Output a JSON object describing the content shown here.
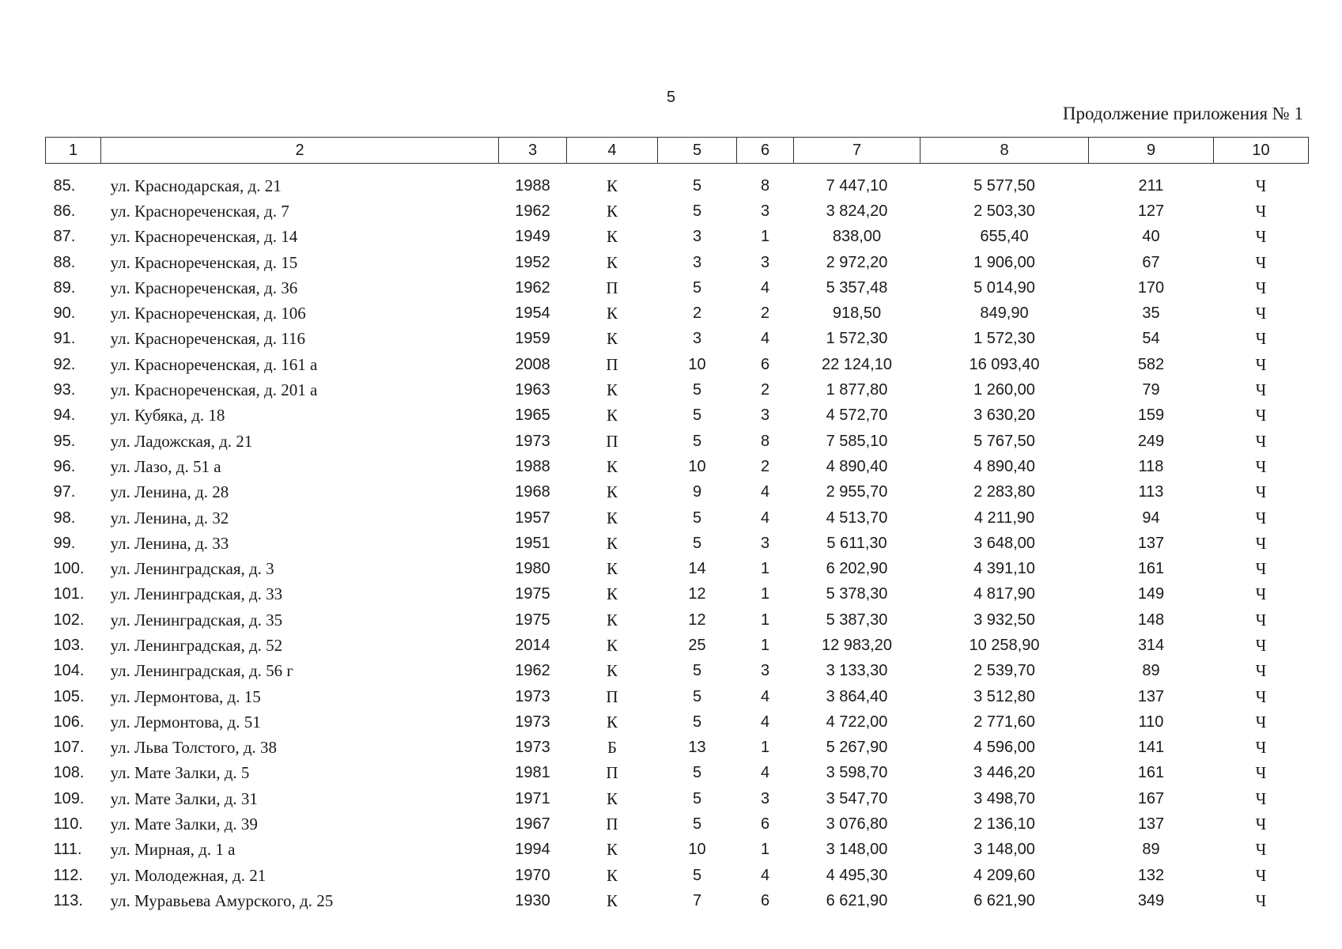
{
  "page": {
    "number": "5",
    "title": "Продолжение приложения № 1"
  },
  "table": {
    "headers": [
      "1",
      "2",
      "3",
      "4",
      "5",
      "6",
      "7",
      "8",
      "9",
      "10"
    ],
    "rows": [
      [
        "85.",
        "ул. Краснодарская, д. 21",
        "1988",
        "К",
        "5",
        "8",
        "7 447,10",
        "5 577,50",
        "211",
        "Ч"
      ],
      [
        "86.",
        "ул. Краснореченская, д. 7",
        "1962",
        "К",
        "5",
        "3",
        "3 824,20",
        "2 503,30",
        "127",
        "Ч"
      ],
      [
        "87.",
        "ул. Краснореченская, д. 14",
        "1949",
        "К",
        "3",
        "1",
        "838,00",
        "655,40",
        "40",
        "Ч"
      ],
      [
        "88.",
        "ул. Краснореченская, д. 15",
        "1952",
        "К",
        "3",
        "3",
        "2 972,20",
        "1 906,00",
        "67",
        "Ч"
      ],
      [
        "89.",
        "ул. Краснореченская, д. 36",
        "1962",
        "П",
        "5",
        "4",
        "5 357,48",
        "5 014,90",
        "170",
        "Ч"
      ],
      [
        "90.",
        "ул. Краснореченская, д. 106",
        "1954",
        "К",
        "2",
        "2",
        "918,50",
        "849,90",
        "35",
        "Ч"
      ],
      [
        "91.",
        "ул. Краснореченская, д. 116",
        "1959",
        "К",
        "3",
        "4",
        "1 572,30",
        "1 572,30",
        "54",
        "Ч"
      ],
      [
        "92.",
        "ул. Краснореченская, д. 161 а",
        "2008",
        "П",
        "10",
        "6",
        "22 124,10",
        "16 093,40",
        "582",
        "Ч"
      ],
      [
        "93.",
        "ул. Краснореченская, д. 201 а",
        "1963",
        "К",
        "5",
        "2",
        "1 877,80",
        "1 260,00",
        "79",
        "Ч"
      ],
      [
        "94.",
        "ул. Кубяка, д. 18",
        "1965",
        "К",
        "5",
        "3",
        "4 572,70",
        "3 630,20",
        "159",
        "Ч"
      ],
      [
        "95.",
        "ул. Ладожская, д. 21",
        "1973",
        "П",
        "5",
        "8",
        "7 585,10",
        "5 767,50",
        "249",
        "Ч"
      ],
      [
        "96.",
        "ул. Лазо, д. 51 а",
        "1988",
        "К",
        "10",
        "2",
        "4 890,40",
        "4 890,40",
        "118",
        "Ч"
      ],
      [
        "97.",
        "ул. Ленина, д. 28",
        "1968",
        "К",
        "9",
        "4",
        "2 955,70",
        "2 283,80",
        "113",
        "Ч"
      ],
      [
        "98.",
        "ул. Ленина, д. 32",
        "1957",
        "К",
        "5",
        "4",
        "4 513,70",
        "4 211,90",
        "94",
        "Ч"
      ],
      [
        "99.",
        "ул. Ленина, д. 33",
        "1951",
        "К",
        "5",
        "3",
        "5 611,30",
        "3 648,00",
        "137",
        "Ч"
      ],
      [
        "100.",
        "ул. Ленинградская, д. 3",
        "1980",
        "К",
        "14",
        "1",
        "6 202,90",
        "4 391,10",
        "161",
        "Ч"
      ],
      [
        "101.",
        "ул. Ленинградская, д. 33",
        "1975",
        "К",
        "12",
        "1",
        "5 378,30",
        "4 817,90",
        "149",
        "Ч"
      ],
      [
        "102.",
        "ул. Ленинградская, д. 35",
        "1975",
        "К",
        "12",
        "1",
        "5 387,30",
        "3 932,50",
        "148",
        "Ч"
      ],
      [
        "103.",
        "ул. Ленинградская, д. 52",
        "2014",
        "К",
        "25",
        "1",
        "12 983,20",
        "10 258,90",
        "314",
        "Ч"
      ],
      [
        "104.",
        "ул. Ленинградская, д. 56 г",
        "1962",
        "К",
        "5",
        "3",
        "3 133,30",
        "2 539,70",
        "89",
        "Ч"
      ],
      [
        "105.",
        "ул. Лермонтова, д. 15",
        "1973",
        "П",
        "5",
        "4",
        "3 864,40",
        "3 512,80",
        "137",
        "Ч"
      ],
      [
        "106.",
        "ул. Лермонтова, д. 51",
        "1973",
        "К",
        "5",
        "4",
        "4 722,00",
        "2 771,60",
        "110",
        "Ч"
      ],
      [
        "107.",
        "ул. Льва Толстого, д. 38",
        "1973",
        "Б",
        "13",
        "1",
        "5 267,90",
        "4 596,00",
        "141",
        "Ч"
      ],
      [
        "108.",
        "ул. Мате Залки, д. 5",
        "1981",
        "П",
        "5",
        "4",
        "3 598,70",
        "3 446,20",
        "161",
        "Ч"
      ],
      [
        "109.",
        "ул. Мате Залки, д. 31",
        "1971",
        "К",
        "5",
        "3",
        "3 547,70",
        "3 498,70",
        "167",
        "Ч"
      ],
      [
        "110.",
        "ул. Мате Залки, д. 39",
        "1967",
        "П",
        "5",
        "6",
        "3 076,80",
        "2 136,10",
        "137",
        "Ч"
      ],
      [
        "111.",
        "ул. Мирная, д. 1 а",
        "1994",
        "К",
        "10",
        "1",
        "3 148,00",
        "3 148,00",
        "89",
        "Ч"
      ],
      [
        "112.",
        "ул. Молодежная, д. 21",
        "1970",
        "К",
        "5",
        "4",
        "4 495,30",
        "4 209,60",
        "132",
        "Ч"
      ],
      [
        "113.",
        "ул. Муравьева Амурского, д. 25",
        "1930",
        "К",
        "7",
        "6",
        "6 621,90",
        "6 621,90",
        "349",
        "Ч"
      ]
    ]
  }
}
